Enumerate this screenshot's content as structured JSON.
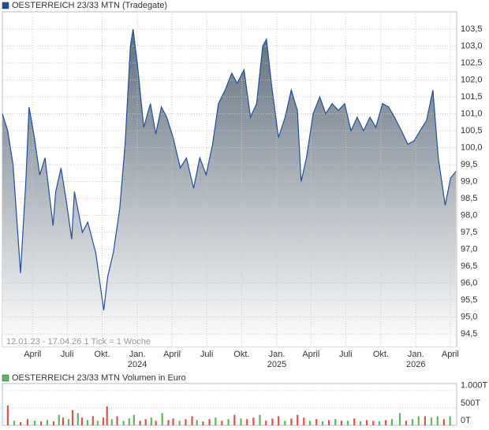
{
  "chart_data": [
    {
      "type": "area-line",
      "title": "OESTERREICH 23/33 MTN (Tradegate)",
      "legend_color": "#1f4e9c",
      "annotation": "12.01.23 - 17.04.26   1 Tick = 1 Woche",
      "color": "#1f4e9c",
      "fill_top": "#5f6f7d",
      "fill_bottom": "#ffffff",
      "grid": true,
      "xlim": [
        0,
        170.3
      ],
      "xticks": [
        {
          "value": 11.3,
          "label": "April"
        },
        {
          "value": 24.3,
          "label": "Juli"
        },
        {
          "value": 37.4,
          "label": "Okt."
        },
        {
          "value": 50.6,
          "label": "Jan.",
          "year": "2024"
        },
        {
          "value": 63.6,
          "label": "April"
        },
        {
          "value": 76.6,
          "label": "Juli"
        },
        {
          "value": 89.7,
          "label": "Okt."
        },
        {
          "value": 102.9,
          "label": "Jan.",
          "year": "2025"
        },
        {
          "value": 115.7,
          "label": "April"
        },
        {
          "value": 128.7,
          "label": "Juli"
        },
        {
          "value": 141.9,
          "label": "Okt."
        },
        {
          "value": 155.0,
          "label": "Jan.",
          "year": "2026"
        },
        {
          "value": 167.9,
          "label": "April"
        }
      ],
      "ylim": [
        94.13,
        104.01
      ],
      "yticks": [
        {
          "value": 94.5,
          "label": "94,5"
        },
        {
          "value": 95.0,
          "label": "95,0"
        },
        {
          "value": 95.5,
          "label": "95,5"
        },
        {
          "value": 96.0,
          "label": "96,0"
        },
        {
          "value": 96.5,
          "label": "96,5"
        },
        {
          "value": 97.0,
          "label": "97,0"
        },
        {
          "value": 97.5,
          "label": "97,5"
        },
        {
          "value": 98.0,
          "label": "98,0"
        },
        {
          "value": 98.5,
          "label": "98,5"
        },
        {
          "value": 99.0,
          "label": "99,0"
        },
        {
          "value": 99.5,
          "label": "99,5"
        },
        {
          "value": 100.0,
          "label": "100,0"
        },
        {
          "value": 100.5,
          "label": "100,5"
        },
        {
          "value": 101.0,
          "label": "101,0"
        },
        {
          "value": 101.5,
          "label": "101,5"
        },
        {
          "value": 102.0,
          "label": "102,0"
        },
        {
          "value": 102.5,
          "label": "102,5"
        },
        {
          "value": 103.0,
          "label": "103,0"
        },
        {
          "value": 103.5,
          "label": "103,5"
        }
      ],
      "x": [
        0,
        2,
        4,
        6.8,
        8.8,
        10,
        12,
        14,
        16,
        19,
        20,
        22,
        24,
        26,
        27,
        30,
        32,
        35,
        38,
        39.5,
        41.6,
        44,
        46,
        48,
        49,
        50.7,
        53,
        55.5,
        57.5,
        59.6,
        61.6,
        64,
        66.7,
        69,
        71.7,
        74,
        76.4,
        78.8,
        81,
        83.5,
        86,
        88,
        90.6,
        93,
        95.3,
        97.6,
        99,
        101,
        103.5,
        106,
        108.3,
        110.6,
        112,
        114,
        116.5,
        119,
        121.2,
        123.6,
        126,
        128.3,
        130.7,
        133,
        135.4,
        137.8,
        140,
        142.5,
        144.8,
        147,
        149.6,
        152,
        154.3,
        156.6,
        159,
        161.4,
        163.4,
        166,
        168,
        170
      ],
      "values": [
        101.0,
        100.5,
        99.5,
        96.3,
        99.0,
        101.2,
        100.3,
        99.2,
        99.7,
        97.7,
        98.7,
        99.4,
        98.4,
        97.3,
        98.7,
        97.5,
        97.8,
        96.9,
        95.2,
        96.2,
        96.9,
        98.2,
        100.1,
        103.0,
        103.5,
        102.4,
        100.6,
        101.3,
        100.4,
        101.2,
        100.9,
        100.3,
        99.4,
        99.7,
        98.8,
        99.7,
        99.2,
        100.1,
        101.3,
        101.7,
        102.2,
        101.9,
        102.3,
        100.9,
        101.3,
        103.0,
        103.2,
        101.8,
        100.3,
        100.9,
        101.7,
        101.1,
        99.0,
        99.7,
        101.0,
        101.5,
        101.0,
        101.3,
        101.1,
        101.3,
        100.5,
        100.9,
        100.5,
        100.9,
        100.6,
        101.3,
        101.2,
        100.9,
        100.5,
        100.1,
        100.2,
        100.5,
        100.8,
        101.7,
        99.7,
        98.3,
        99.1,
        99.3
      ]
    },
    {
      "type": "volume-bar",
      "title": "OESTERREICH 23/33 MTN Volumen in Euro",
      "legend_color": "#5cb85c",
      "grid": true,
      "xlim": [
        0,
        170.3
      ],
      "ylim": [
        0,
        1200
      ],
      "yticks": [
        {
          "value": 0,
          "label": "0T"
        },
        {
          "value": 500,
          "label": "500T"
        },
        {
          "value": 1000,
          "label": "1.000T"
        }
      ],
      "x": [
        2,
        4.4,
        6.8,
        9.4,
        12.1,
        14.5,
        16.8,
        19.2,
        21.2,
        22.7,
        24.8,
        26.3,
        28.3,
        29.8,
        31.9,
        33.9,
        35.7,
        37.8,
        39.2,
        41,
        43,
        45.4,
        47.5,
        49.3,
        51.6,
        53.7,
        55.8,
        57.5,
        59.9,
        62.2,
        64,
        66.4,
        68.7,
        71.1,
        72.9,
        75.2,
        77.6,
        79.9,
        82.3,
        84.7,
        87,
        89.4,
        91.7,
        94.1,
        96.5,
        98.8,
        101.2,
        103.5,
        105.9,
        108.3,
        110.6,
        113,
        115.3,
        117.7,
        120,
        122.4,
        124.8,
        127.1,
        129.5,
        131.9,
        134.2,
        136.6,
        139,
        141.3,
        143.7,
        146,
        149,
        151.3,
        153.7,
        156,
        158.4,
        160.8,
        163.1,
        165.5,
        167.8
      ],
      "values": [
        570,
        130,
        90,
        175,
        130,
        110,
        150,
        110,
        300,
        220,
        175,
        435,
        350,
        220,
        150,
        260,
        130,
        220,
        545,
        175,
        260,
        130,
        195,
        300,
        130,
        175,
        220,
        130,
        350,
        150,
        195,
        130,
        175,
        260,
        150,
        110,
        175,
        220,
        130,
        175,
        300,
        195,
        175,
        220,
        300,
        130,
        195,
        260,
        130,
        195,
        300,
        220,
        130,
        175,
        110,
        150,
        175,
        130,
        130,
        195,
        110,
        150,
        130,
        110,
        150,
        175,
        350,
        130,
        175,
        260,
        260,
        220,
        260,
        175,
        260
      ],
      "colors": [
        "#d9534f",
        "#5cb85c",
        "#d9534f",
        "#d9534f",
        "#5cb85c",
        "#d9534f",
        "#5cb85c",
        "#d9534f",
        "#5cb85c",
        "#d9534f",
        "#5cb85c",
        "#d9534f",
        "#5cb85c",
        "#d9534f",
        "#5cb85c",
        "#d9534f",
        "#5cb85c",
        "#d9534f",
        "#d9534f",
        "#5cb85c",
        "#d9534f",
        "#5cb85c",
        "#5cb85c",
        "#5cb85c",
        "#d9534f",
        "#d9534f",
        "#5cb85c",
        "#d9534f",
        "#5cb85c",
        "#d9534f",
        "#d9534f",
        "#5cb85c",
        "#d9534f",
        "#d9534f",
        "#5cb85c",
        "#d9534f",
        "#d9534f",
        "#5cb85c",
        "#d9534f",
        "#5cb85c",
        "#d9534f",
        "#5cb85c",
        "#d9534f",
        "#d9534f",
        "#5cb85c",
        "#d9534f",
        "#d9534f",
        "#d9534f",
        "#5cb85c",
        "#d9534f",
        "#d9534f",
        "#d9534f",
        "#5cb85c",
        "#d9534f",
        "#5cb85c",
        "#d9534f",
        "#5cb85c",
        "#d9534f",
        "#5cb85c",
        "#d9534f",
        "#5cb85c",
        "#d9534f",
        "#d9534f",
        "#5cb85c",
        "#d9534f",
        "#5cb85c",
        "#5cb85c",
        "#d9534f",
        "#5cb85c",
        "#5cb85c",
        "#d9534f",
        "#5cb85c",
        "#5cb85c",
        "#d9534f",
        "#5cb85c"
      ]
    }
  ]
}
